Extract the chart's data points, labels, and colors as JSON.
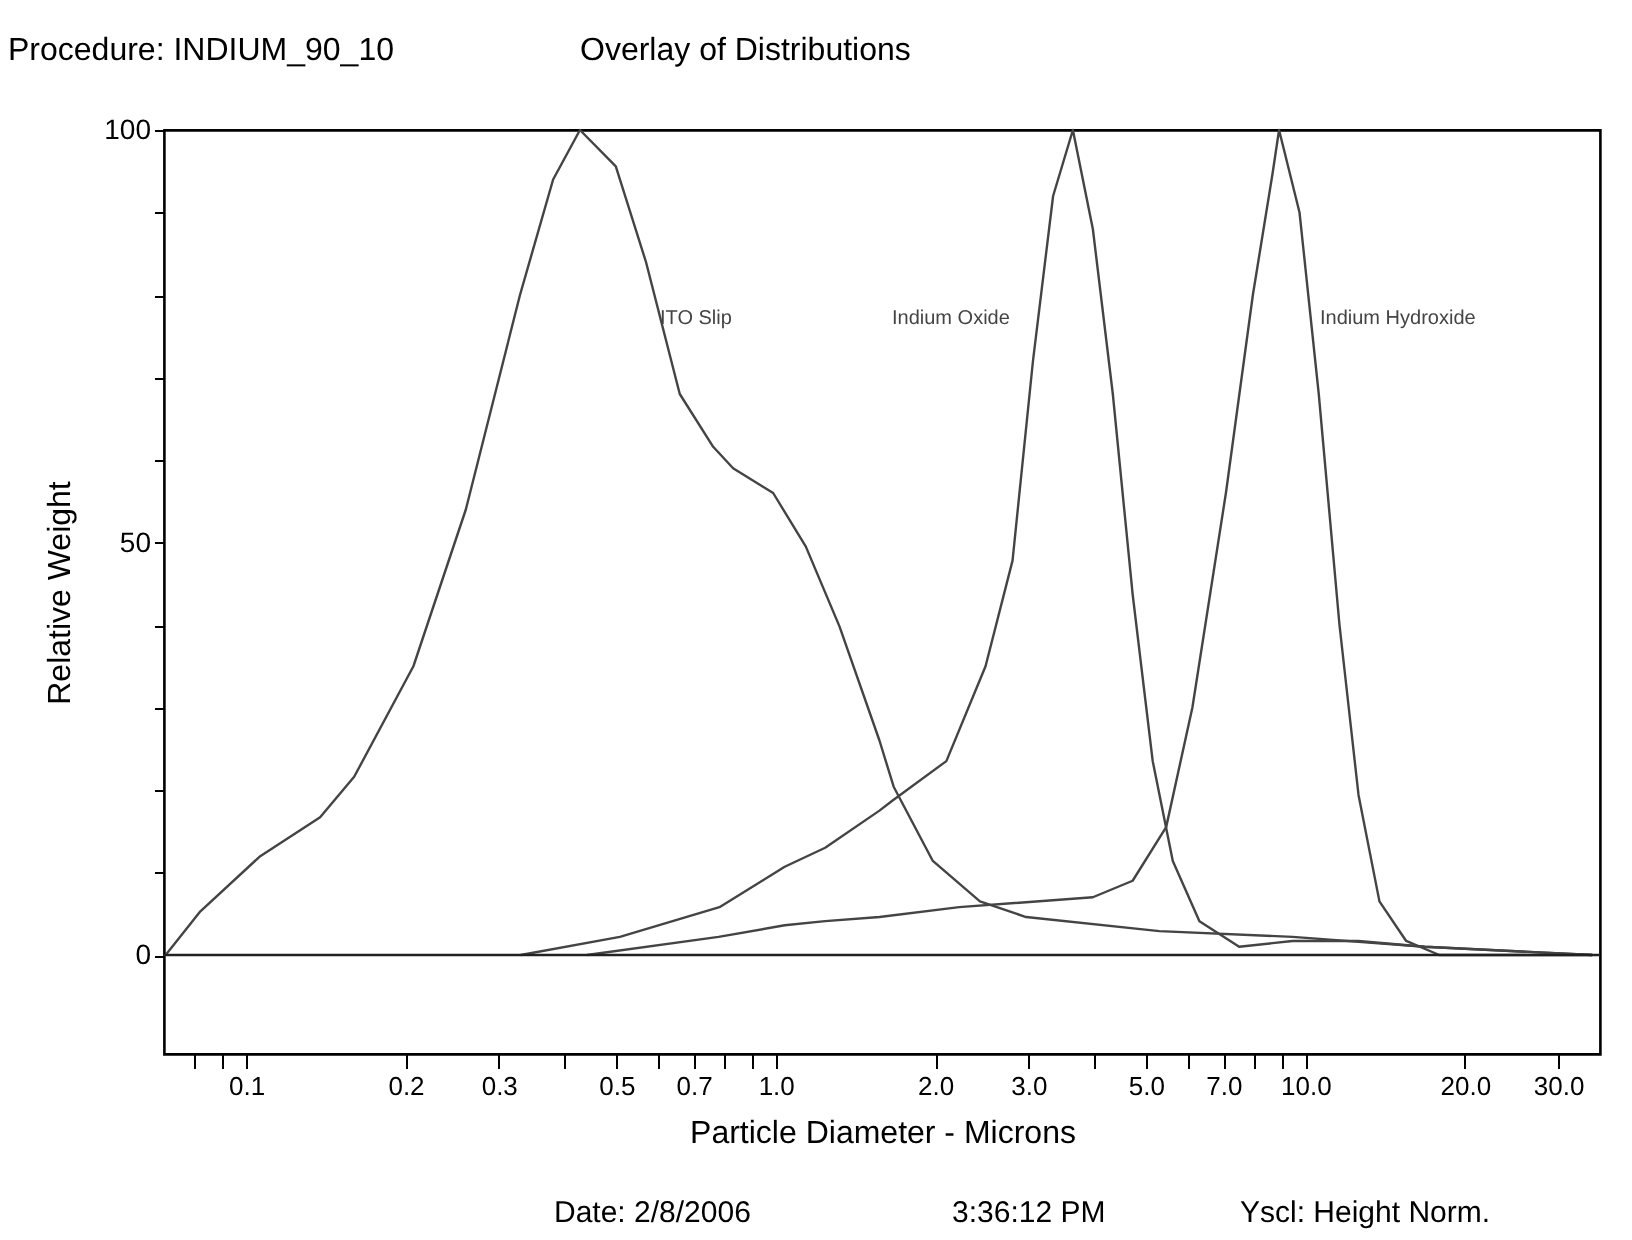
{
  "chart_data": {
    "type": "line",
    "title": "Overlay of Distributions",
    "subtitle": "Procedure: INDIUM_90_10",
    "xlabel": "Particle Diameter - Microns",
    "ylabel": "Relative Weight",
    "log": "x",
    "grid": false,
    "legend": false,
    "line_style": "solid",
    "marker": "none",
    "xlim": [
      0.07,
      36
    ],
    "ylim": [
      -12,
      100
    ],
    "xticks": [
      {
        "value": 0.08,
        "label": null
      },
      {
        "value": 0.09,
        "label": null
      },
      0.1,
      0.2,
      0.3,
      {
        "value": 0.4,
        "label": null
      },
      0.5,
      {
        "value": 0.6,
        "label": null
      },
      0.7,
      {
        "value": 0.8,
        "label": null
      },
      {
        "value": 0.9,
        "label": null
      },
      {
        "value": 1,
        "label": "1.0"
      },
      {
        "value": 2,
        "label": "2.0"
      },
      {
        "value": 3,
        "label": "3.0"
      },
      {
        "value": 4,
        "label": null
      },
      {
        "value": 5,
        "label": "5.0"
      },
      {
        "value": 6,
        "label": null
      },
      {
        "value": 7,
        "label": "7.0"
      },
      {
        "value": 8,
        "label": null
      },
      {
        "value": 9,
        "label": null
      },
      {
        "value": 10,
        "label": "10.0"
      },
      {
        "value": 20,
        "label": "20.0"
      },
      {
        "value": 30,
        "label": "30.0"
      }
    ],
    "yticks": [
      0,
      {
        "value": 10,
        "label": null
      },
      {
        "value": 20,
        "label": null
      },
      {
        "value": 30,
        "label": null
      },
      {
        "value": 40,
        "label": null
      },
      50,
      {
        "value": 60,
        "label": null
      },
      {
        "value": 70,
        "label": null
      },
      {
        "value": 80,
        "label": null
      },
      {
        "value": 90,
        "label": null
      },
      100
    ],
    "ref_lines": [
      {
        "axis": "y",
        "value": 0,
        "color": "#222222"
      }
    ],
    "series": [
      {
        "name": "ITO Slip",
        "color": "#444444",
        "x": [
          0.0705,
          0.082,
          0.106,
          0.138,
          0.16,
          0.207,
          0.26,
          0.329,
          0.38,
          0.427,
          0.499,
          0.569,
          0.659,
          0.762,
          0.831,
          0.989,
          1.14,
          1.32,
          1.57,
          1.67,
          1.98,
          2.43,
          2.97,
          5.3,
          9.46,
          16.8,
          34.8
        ],
        "values": [
          0,
          5.3,
          11.9,
          16.7,
          21.6,
          35,
          54,
          80,
          94,
          100,
          95.6,
          84,
          68,
          61.6,
          59,
          56,
          49.5,
          39.8,
          26,
          20.4,
          11.4,
          6.5,
          4.6,
          2.9,
          2.2,
          1.0,
          0
        ]
      },
      {
        "name": "Indium Oxide",
        "color": "#444444",
        "x": [
          0.33,
          0.508,
          0.783,
          1.04,
          1.24,
          1.57,
          1.66,
          2.1,
          2.49,
          2.8,
          3.06,
          3.34,
          3.64,
          3.97,
          4.33,
          4.72,
          5.15,
          5.62,
          6.31,
          7.5,
          9.46,
          12.6,
          16.8,
          34.8
        ],
        "values": [
          0,
          2.2,
          5.8,
          10.7,
          13,
          17.5,
          18.7,
          23.5,
          35,
          47.8,
          72,
          92,
          100,
          88,
          68,
          43.7,
          23.5,
          11.4,
          4.1,
          1.0,
          1.7,
          1.7,
          1.0,
          0
        ]
      },
      {
        "name": "Indium Hydroxide",
        "color": "#444444",
        "x": [
          0.44,
          0.78,
          1.04,
          1.24,
          1.57,
          2.22,
          3.97,
          4.72,
          5.46,
          6.12,
          7.08,
          7.96,
          8.67,
          8.92,
          9.75,
          10.6,
          11.6,
          12.6,
          13.8,
          15.5,
          17.9,
          34.8
        ],
        "values": [
          0,
          2.2,
          3.6,
          4.1,
          4.6,
          5.8,
          7,
          9,
          15.5,
          30,
          56,
          80,
          94.7,
          100,
          90,
          68,
          40,
          19.4,
          6.5,
          1.7,
          0,
          0
        ]
      }
    ],
    "annotations": [
      "Date: 2/8/2006",
      "3:36:12 PM",
      "Yscl: Height Norm."
    ]
  }
}
